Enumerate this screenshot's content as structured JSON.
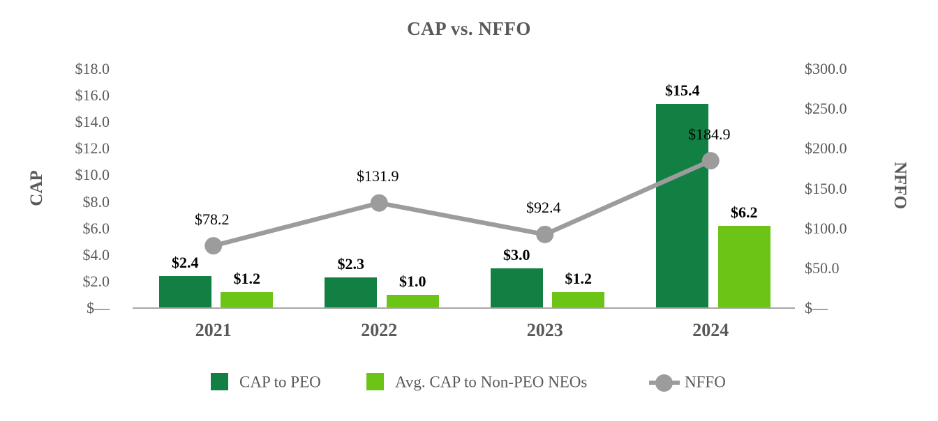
{
  "title": "CAP vs. NFFO",
  "left_axis": {
    "title": "CAP",
    "tick_labels": [
      "$18.0",
      "$16.0",
      "$14.0",
      "$12.0",
      "$10.0",
      "$8.0",
      "$6.0",
      "$4.0",
      "$2.0",
      "$—"
    ],
    "tick_values": [
      18,
      16,
      14,
      12,
      10,
      8,
      6,
      4,
      2,
      0
    ]
  },
  "right_axis": {
    "title": "NFFO",
    "tick_labels": [
      "$300.0",
      "$250.0",
      "$200.0",
      "$150.0",
      "$100.0",
      "$50.0",
      "$—"
    ],
    "tick_values": [
      300,
      250,
      200,
      150,
      100,
      50,
      0
    ]
  },
  "chart_data": {
    "type": "combo-bar-line",
    "categories": [
      "2021",
      "2022",
      "2023",
      "2024"
    ],
    "series": [
      {
        "name": "CAP to PEO",
        "type": "bar",
        "axis": "left",
        "color": "#128042",
        "values": [
          2.4,
          2.3,
          3.0,
          15.4
        ],
        "labels": [
          "$2.4",
          "$2.3",
          "$3.0",
          "$15.4"
        ]
      },
      {
        "name": "Avg. CAP to Non-PEO NEOs",
        "type": "bar",
        "axis": "left",
        "color": "#6cc417",
        "values": [
          1.2,
          1.0,
          1.2,
          6.2
        ],
        "labels": [
          "$1.2",
          "$1.0",
          "$1.2",
          "$6.2"
        ]
      },
      {
        "name": "NFFO",
        "type": "line",
        "axis": "right",
        "color": "#9c9c9c",
        "values": [
          78.2,
          131.9,
          92.4,
          184.9
        ],
        "labels": [
          "$78.2",
          "$131.9",
          "$92.4",
          "$184.9"
        ]
      }
    ],
    "title": "CAP vs. NFFO",
    "left_ylabel": "CAP",
    "right_ylabel": "NFFO",
    "left_ylim": [
      0,
      18
    ],
    "right_ylim": [
      0,
      300
    ],
    "grid": false,
    "legend_position": "bottom",
    "data_labels_shown": true
  },
  "colors": {
    "bar_dark_green": "#128042",
    "bar_light_green": "#6cc417",
    "line_gray": "#9c9c9c",
    "axis_text_gray": "#595959",
    "axis_line_gray": "#a6a6a6",
    "label_black": "#000000"
  }
}
